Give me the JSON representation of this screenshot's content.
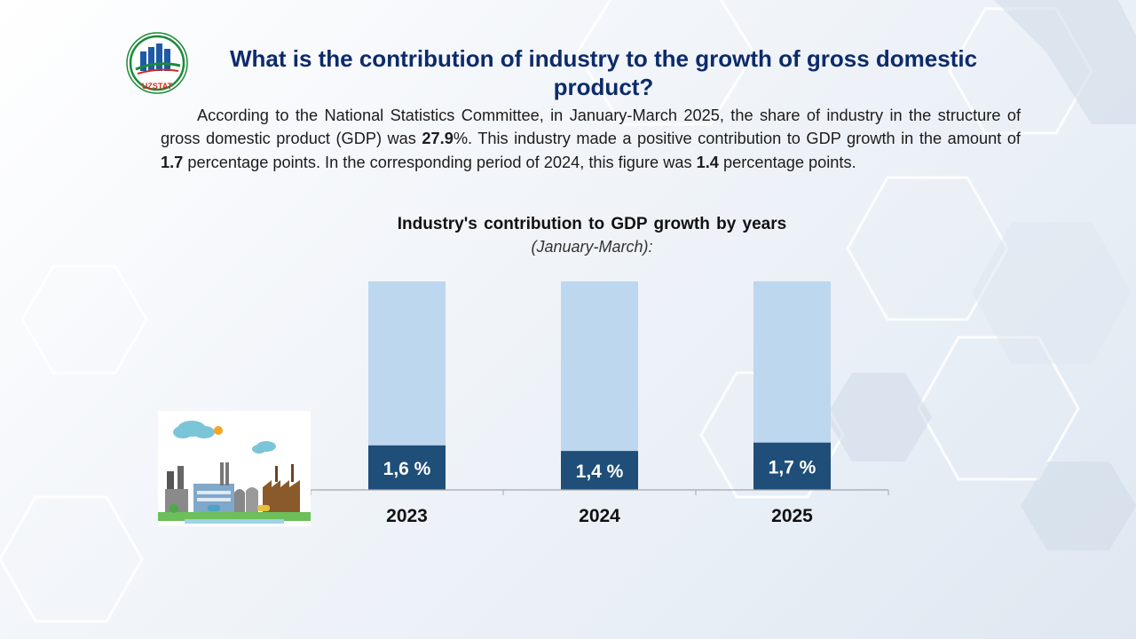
{
  "header": {
    "logo_text": "UZSTAT",
    "title": "What is the contribution of industry to the growth of gross domestic product?"
  },
  "paragraph": {
    "p1": "According to the National Statistics Committee, in January-March 2025, the share of industry in the structure of gross domestic product (GDP) was ",
    "share": "27.9",
    "p2": "%. This industry made a positive contribution to GDP growth in the amount of ",
    "contribution": "1.7",
    "p3": " percentage points. In the corresponding period of 2024, this figure was ",
    "previous": "1.4",
    "p4": " percentage points."
  },
  "colors": {
    "title": "#0d2b6b",
    "bar_value": "#1f4e79",
    "bar_background": "#bdd7ee",
    "axis": "#a6a6a6"
  },
  "chart_data": {
    "type": "bar",
    "title": "Industry's contribution to GDP growth by years",
    "subtitle": "(January-March):",
    "categories": [
      "2023",
      "2024",
      "2025"
    ],
    "values": [
      1.6,
      1.4,
      1.7
    ],
    "labels": [
      "1,6 %",
      "1,4 %",
      "1,7 %"
    ],
    "background_bar_value": 7.5,
    "ylim": [
      0,
      7.5
    ],
    "xlabel": "",
    "ylabel": "",
    "grid": false
  }
}
